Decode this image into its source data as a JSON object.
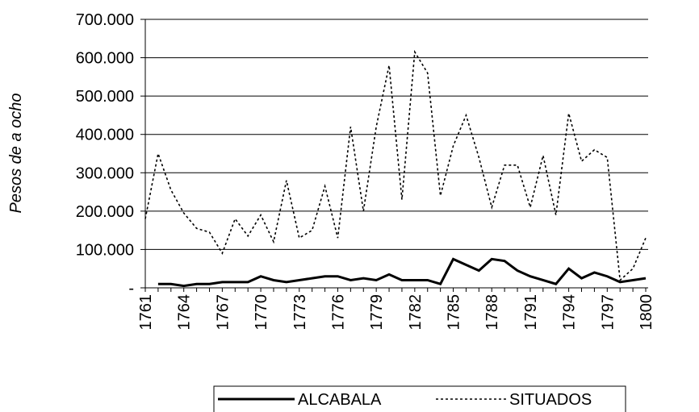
{
  "chart_data": {
    "type": "line",
    "y_label": "Pesos de a ocho",
    "x": [
      1761,
      1762,
      1763,
      1764,
      1765,
      1766,
      1767,
      1768,
      1769,
      1770,
      1771,
      1772,
      1773,
      1774,
      1775,
      1776,
      1777,
      1778,
      1779,
      1780,
      1781,
      1782,
      1783,
      1784,
      1785,
      1786,
      1787,
      1788,
      1789,
      1790,
      1791,
      1792,
      1793,
      1794,
      1795,
      1796,
      1797,
      1798,
      1799,
      1800
    ],
    "xlim": [
      1761,
      1800
    ],
    "xticks": [
      1761,
      1764,
      1767,
      1770,
      1773,
      1776,
      1779,
      1782,
      1785,
      1788,
      1791,
      1794,
      1797,
      1800
    ],
    "ylim": [
      0,
      700000
    ],
    "yticks": [
      {
        "value": 0,
        "label": "-"
      },
      {
        "value": 100000,
        "label": "100.000"
      },
      {
        "value": 200000,
        "label": "200.000"
      },
      {
        "value": 300000,
        "label": "300.000"
      },
      {
        "value": 400000,
        "label": "400.000"
      },
      {
        "value": 500000,
        "label": "500.000"
      },
      {
        "value": 600000,
        "label": "600.000"
      },
      {
        "value": 700000,
        "label": "700.000"
      }
    ],
    "grid": true,
    "legend": "bottom",
    "series": [
      {
        "name": "ALCABALA",
        "color": "#000000",
        "style": "solid",
        "values": [
          null,
          10000,
          10000,
          5000,
          10000,
          10000,
          15000,
          15000,
          15000,
          30000,
          20000,
          15000,
          20000,
          25000,
          30000,
          30000,
          20000,
          25000,
          20000,
          35000,
          20000,
          20000,
          20000,
          10000,
          75000,
          60000,
          45000,
          75000,
          70000,
          45000,
          30000,
          20000,
          10000,
          50000,
          25000,
          40000,
          30000,
          15000,
          20000,
          25000
        ]
      },
      {
        "name": "SITUADOS",
        "color": "#000000",
        "style": "dotted",
        "values": [
          180000,
          350000,
          255000,
          195000,
          155000,
          145000,
          90000,
          180000,
          135000,
          190000,
          120000,
          280000,
          130000,
          150000,
          265000,
          130000,
          420000,
          200000,
          420000,
          580000,
          230000,
          615000,
          560000,
          240000,
          370000,
          450000,
          340000,
          210000,
          320000,
          320000,
          210000,
          345000,
          190000,
          455000,
          330000,
          360000,
          340000,
          20000,
          50000,
          130000
        ]
      }
    ]
  }
}
